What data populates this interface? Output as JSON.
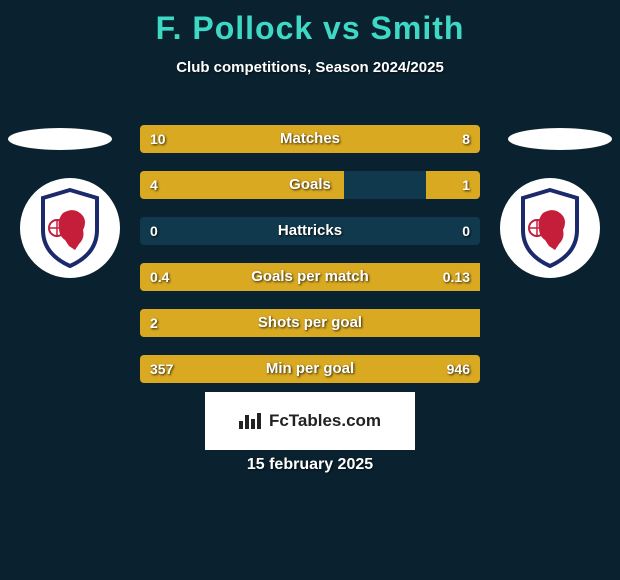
{
  "title": "F. Pollock vs Smith",
  "title_color": "#3dd9c5",
  "subtitle": "Club competitions, Season 2024/2025",
  "background_color": "#0a2230",
  "ellipse": {
    "width": 104,
    "height": 22,
    "color": "#ffffff"
  },
  "crest": {
    "shield_stroke": "#1a2a6c",
    "shield_fill": "#ffffff",
    "lion_color": "#c41e3a"
  },
  "bars": {
    "track_color": "#11394d",
    "left_color": "#d9a921",
    "right_color": "#d9a921",
    "rows": [
      {
        "label": "Matches",
        "left_val": "10",
        "right_val": "8",
        "left_pct": 56,
        "right_pct": 44
      },
      {
        "label": "Goals",
        "left_val": "4",
        "right_val": "1",
        "left_pct": 60,
        "right_pct": 16
      },
      {
        "label": "Hattricks",
        "left_val": "0",
        "right_val": "0",
        "left_pct": 0,
        "right_pct": 0
      },
      {
        "label": "Goals per match",
        "left_val": "0.4",
        "right_val": "0.13",
        "left_pct": 100,
        "right_pct": 0
      },
      {
        "label": "Shots per goal",
        "left_val": "2",
        "right_val": "",
        "left_pct": 100,
        "right_pct": 0
      },
      {
        "label": "Min per goal",
        "left_val": "357",
        "right_val": "946",
        "left_pct": 28,
        "right_pct": 72
      }
    ]
  },
  "logo_text": "FcTables.com",
  "date": "15 february 2025"
}
